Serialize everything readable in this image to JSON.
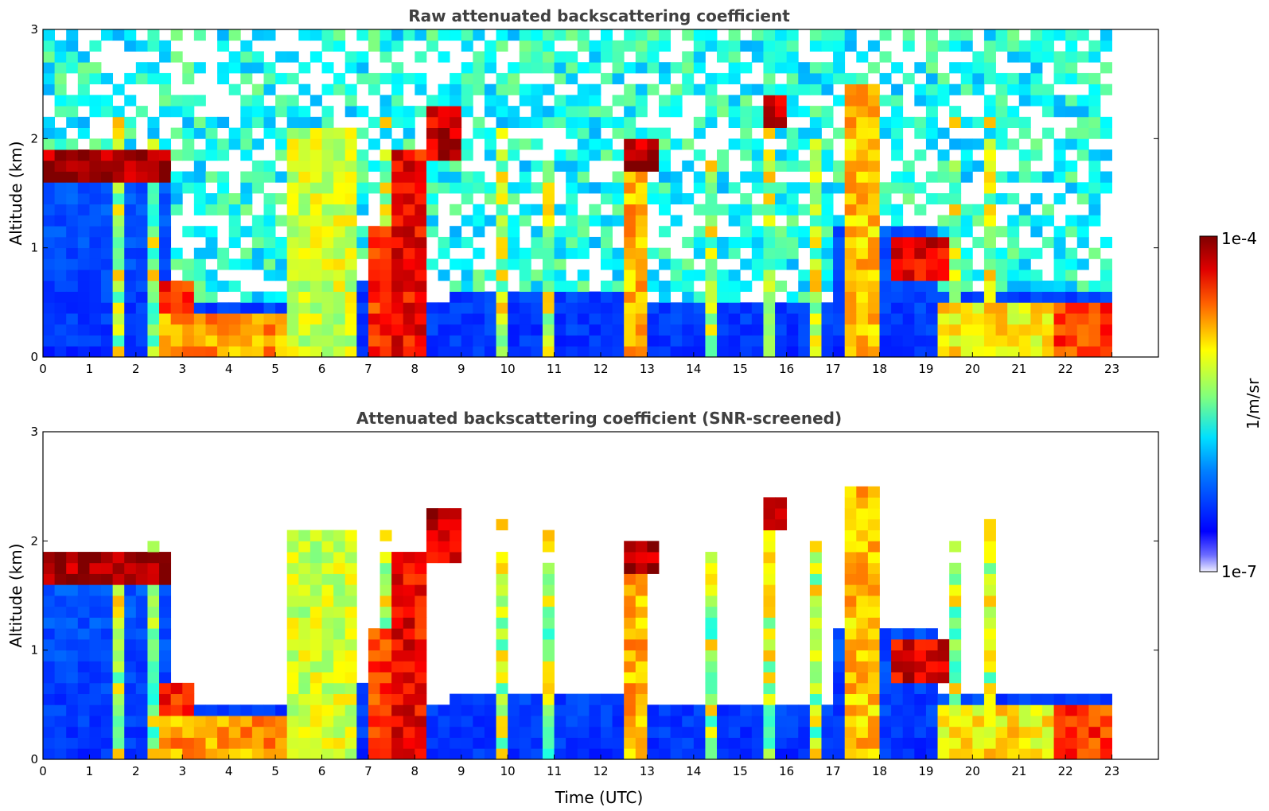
{
  "chart_data": [
    {
      "type": "heatmap",
      "title": "Raw attenuated backscattering coefficient",
      "xlabel": "",
      "ylabel": "Altitude (km)",
      "xlim": [
        0,
        24
      ],
      "ylim": [
        0,
        3
      ],
      "x_ticks": [
        "0",
        "1",
        "2",
        "3",
        "4",
        "5",
        "6",
        "7",
        "8",
        "9",
        "10",
        "11",
        "12",
        "13",
        "14",
        "15",
        "16",
        "17",
        "18",
        "19",
        "20",
        "21",
        "22",
        "23"
      ],
      "y_ticks": [
        "0",
        "1",
        "2",
        "3"
      ],
      "data_end_time": 23,
      "colormap": "jet",
      "screened": false
    },
    {
      "type": "heatmap",
      "title": "Attenuated backscattering coefficient (SNR-screened)",
      "xlabel": "Time (UTC)",
      "ylabel": "Altitude (km)",
      "xlim": [
        0,
        24
      ],
      "ylim": [
        0,
        3
      ],
      "x_ticks": [
        "0",
        "1",
        "2",
        "3",
        "4",
        "5",
        "6",
        "7",
        "8",
        "9",
        "10",
        "11",
        "12",
        "13",
        "14",
        "15",
        "16",
        "17",
        "18",
        "19",
        "20",
        "21",
        "22",
        "23"
      ],
      "y_ticks": [
        "0",
        "1",
        "2",
        "3"
      ],
      "data_end_time": 23,
      "colormap": "jet",
      "screened": true
    }
  ],
  "colorbar": {
    "label": "1/m/sr",
    "min_label": "1e-7",
    "max_label": "1e-4",
    "scale": "log",
    "colors": [
      "#eeeeff",
      "#0000ff",
      "#00bfff",
      "#7fff7f",
      "#ffff00",
      "#ff4000",
      "#7f0000"
    ]
  }
}
